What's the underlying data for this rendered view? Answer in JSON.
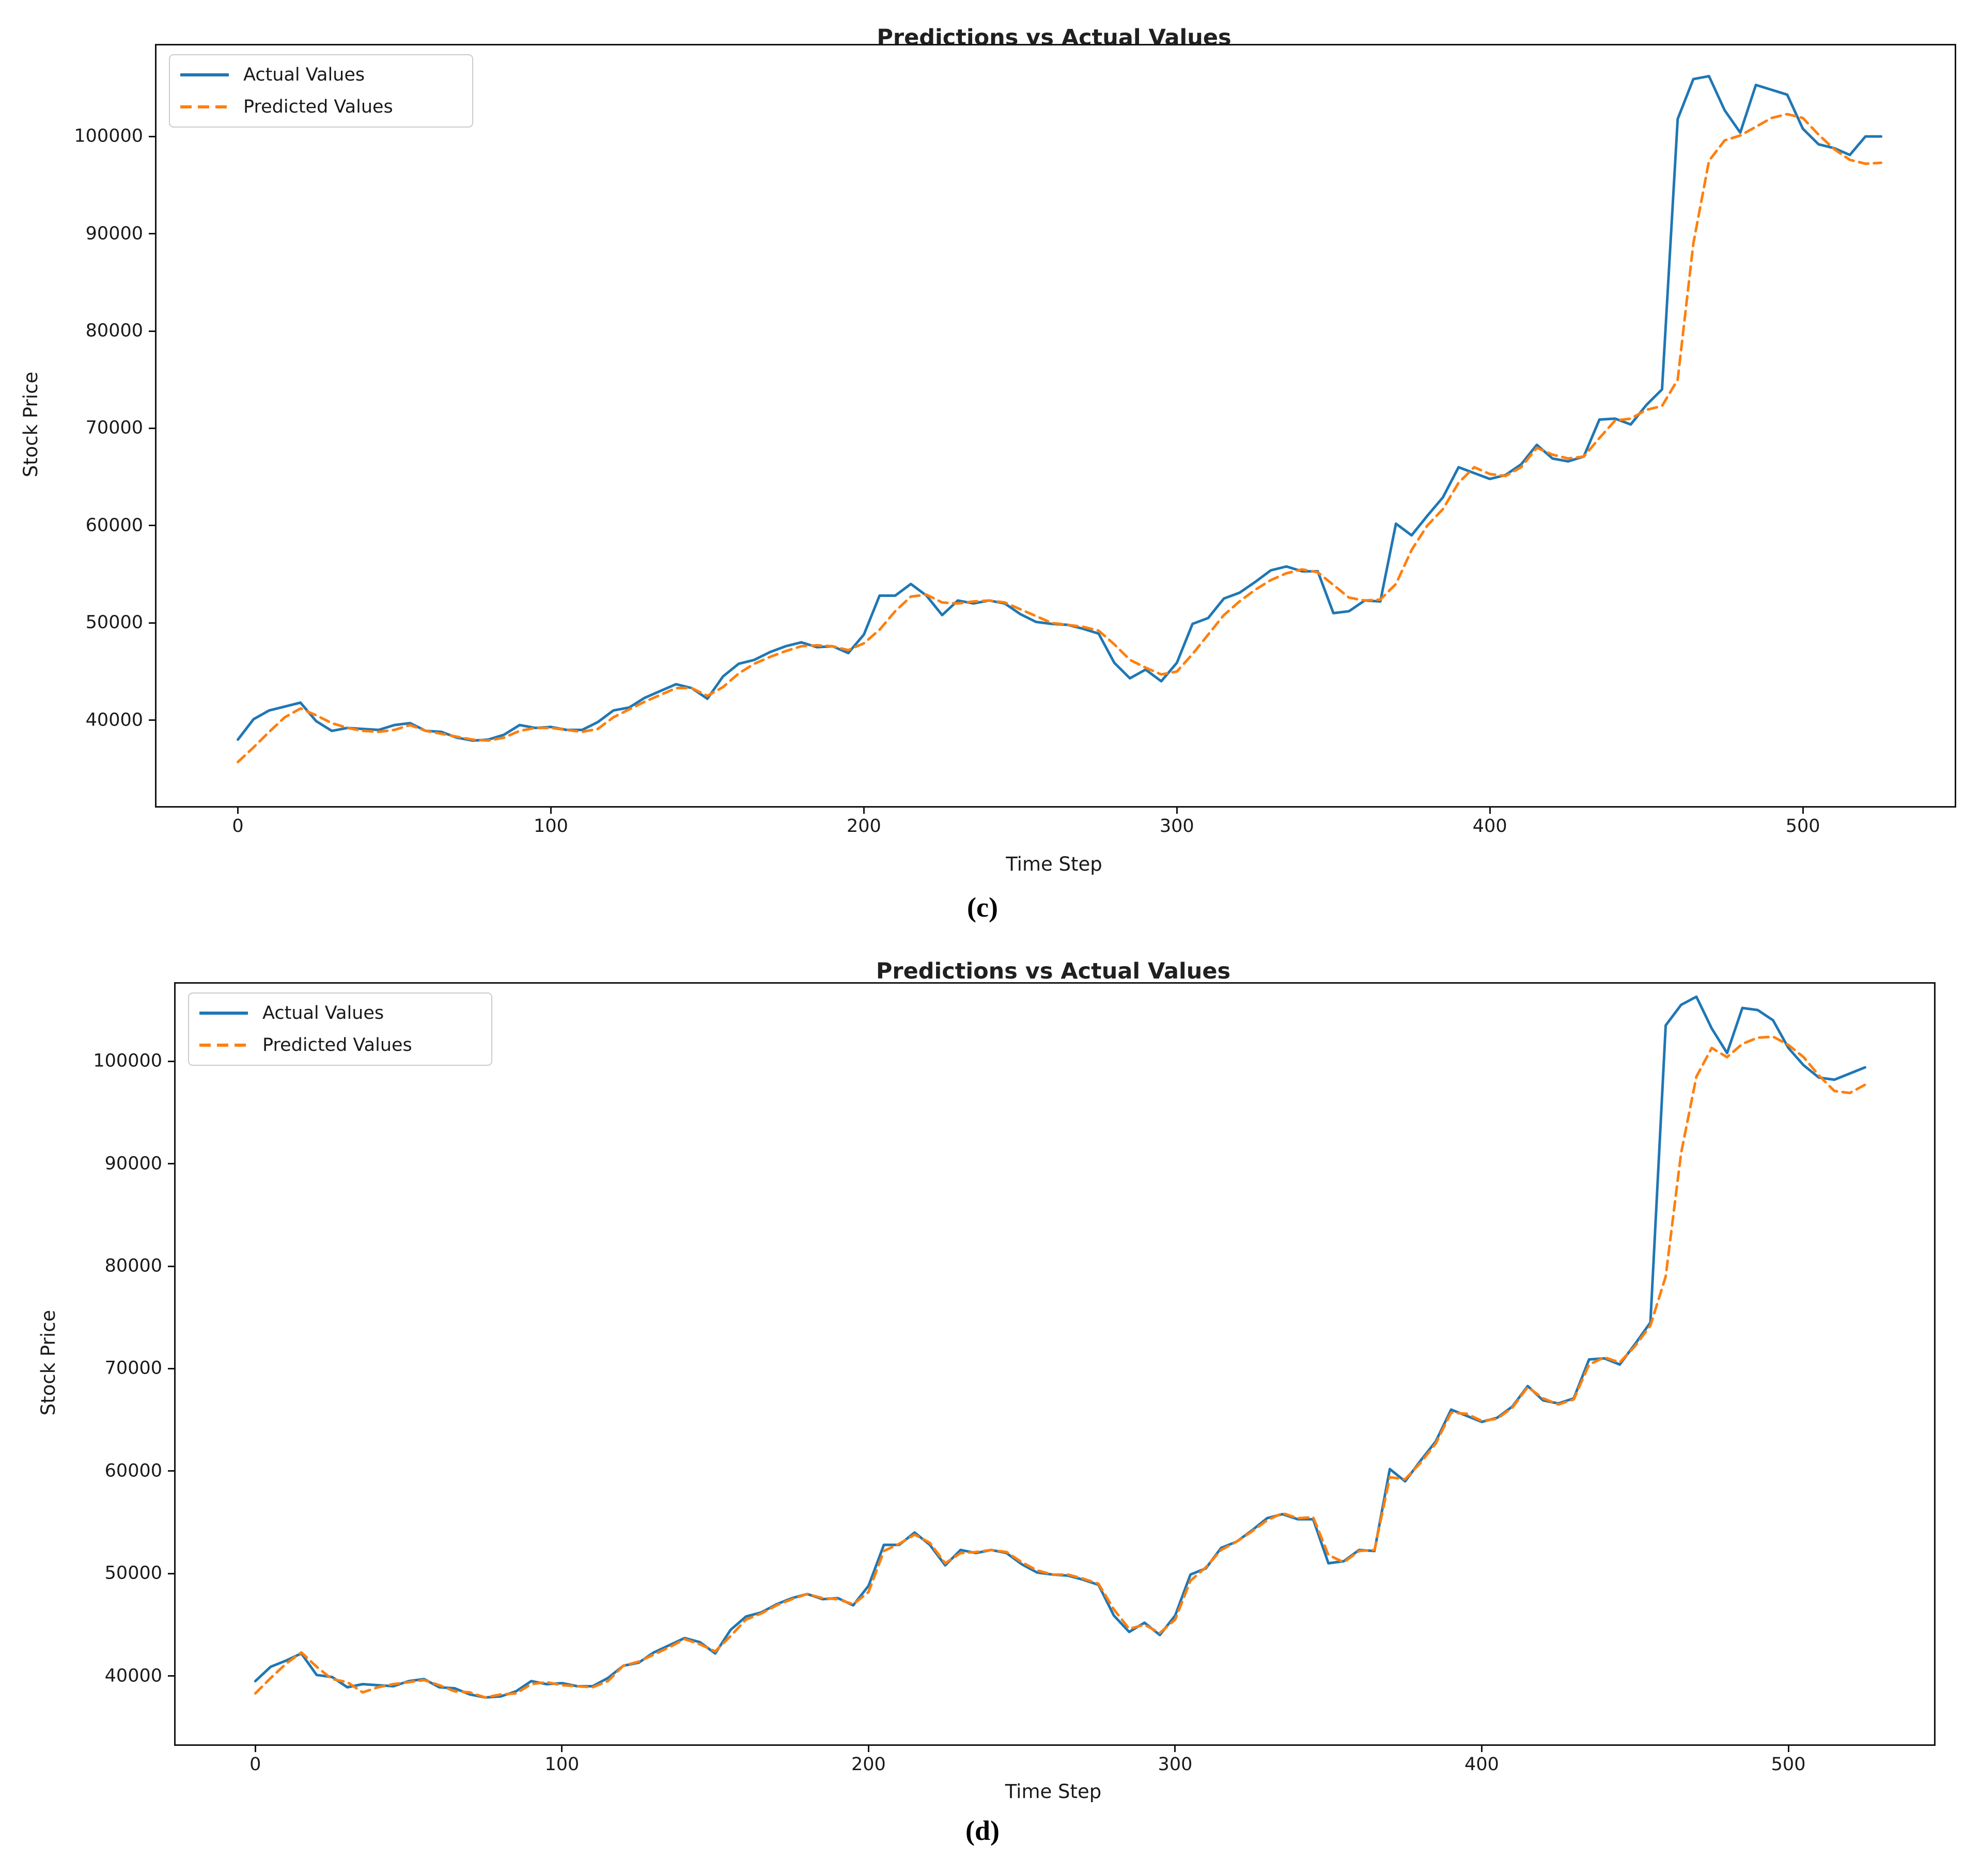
{
  "colors": {
    "actual": "#1f77b4",
    "predicted": "#ff7f0e",
    "text": "#1a1a1a",
    "spine": "#141414",
    "legend_border": "#cbcbcb",
    "background": "#ffffff"
  },
  "chart_data": [
    {
      "id": "c",
      "type": "line",
      "title": "Predictions vs Actual Values",
      "xlabel": "Time Step",
      "ylabel": "Stock Price",
      "caption": "(c)",
      "legend_position": "upper left",
      "grid": false,
      "xlim": [
        -26,
        548.5
      ],
      "ylim": [
        31170,
        109360
      ],
      "x_ticks": [
        0,
        100,
        200,
        300,
        400,
        500
      ],
      "y_ticks": [
        40000,
        50000,
        60000,
        70000,
        80000,
        90000,
        100000
      ],
      "x_start": 0,
      "x_step": 5,
      "series": [
        {
          "name": "Actual Values",
          "style": "solid",
          "color": "#1f77b4",
          "values": [
            38000,
            40100,
            41000,
            41400,
            41800,
            39900,
            38900,
            39200,
            39100,
            39000,
            39500,
            39700,
            38900,
            38800,
            38200,
            37900,
            38000,
            38500,
            39500,
            39200,
            39300,
            39000,
            39000,
            39800,
            41000,
            41300,
            42300,
            43000,
            43700,
            43300,
            42200,
            44500,
            45800,
            46200,
            47000,
            47600,
            48000,
            47500,
            47600,
            46900,
            48800,
            52800,
            52800,
            54000,
            52800,
            50800,
            52300,
            52000,
            52300,
            52000,
            50900,
            50100,
            49900,
            49800,
            49400,
            48900,
            45900,
            44300,
            45200,
            44000,
            45900,
            49900,
            50500,
            52500,
            53100,
            54200,
            55400,
            55800,
            55300,
            55300,
            51000,
            51200,
            52300,
            52200,
            60200,
            59000,
            61000,
            62900,
            66000,
            65400,
            64800,
            65200,
            66300,
            68300,
            66900,
            66600,
            67100,
            70900,
            71000,
            70400,
            72400,
            74000,
            101800,
            105900,
            106200,
            102700,
            100400,
            105300,
            104800,
            104300,
            100800,
            99200,
            98800,
            98100,
            100000,
            100000
          ]
        },
        {
          "name": "Predicted Values",
          "style": "dashed",
          "color": "#ff7f0e",
          "values": [
            35700,
            37200,
            38800,
            40300,
            41200,
            40500,
            39700,
            39200,
            38900,
            38800,
            39000,
            39500,
            38900,
            38600,
            38300,
            38000,
            37900,
            38200,
            38900,
            39200,
            39200,
            39000,
            38800,
            39100,
            40300,
            41100,
            41900,
            42600,
            43300,
            43300,
            42500,
            43400,
            44800,
            45800,
            46500,
            47100,
            47600,
            47700,
            47600,
            47200,
            47900,
            49300,
            51200,
            52700,
            52900,
            52100,
            52000,
            52200,
            52300,
            52100,
            51400,
            50700,
            50000,
            49800,
            49600,
            49200,
            47800,
            46200,
            45400,
            44700,
            45000,
            46800,
            48800,
            50800,
            52200,
            53400,
            54400,
            55100,
            55500,
            55200,
            53900,
            52600,
            52300,
            52400,
            54000,
            57500,
            60000,
            61700,
            64400,
            66000,
            65300,
            65100,
            66000,
            68000,
            67300,
            66900,
            67100,
            69000,
            70800,
            71000,
            71900,
            72300,
            75000,
            89000,
            97500,
            99600,
            100100,
            101000,
            101900,
            102300,
            101900,
            100200,
            98700,
            97600,
            97200,
            97300
          ]
        }
      ]
    },
    {
      "id": "d",
      "type": "line",
      "title": "Predictions vs Actual Values",
      "xlabel": "Time Step",
      "ylabel": "Stock Price",
      "caption": "(d)",
      "legend_position": "upper left",
      "grid": false,
      "xlim": [
        -26,
        547.5
      ],
      "ylim": [
        33330,
        107570
      ],
      "x_ticks": [
        0,
        100,
        200,
        300,
        400,
        500
      ],
      "y_ticks": [
        40000,
        50000,
        60000,
        70000,
        80000,
        90000,
        100000
      ],
      "x_start": 0,
      "x_step": 5,
      "series": [
        {
          "name": "Actual Values",
          "style": "solid",
          "color": "#1f77b4",
          "values": [
            39500,
            40900,
            41500,
            42200,
            40100,
            39900,
            38900,
            39200,
            39100,
            39000,
            39500,
            39700,
            38900,
            38800,
            38200,
            37900,
            38000,
            38500,
            39500,
            39200,
            39300,
            39000,
            39000,
            39800,
            41000,
            41300,
            42300,
            43000,
            43700,
            43300,
            42200,
            44500,
            45800,
            46200,
            47000,
            47600,
            48000,
            47500,
            47600,
            46900,
            48800,
            52800,
            52800,
            54000,
            52800,
            50800,
            52300,
            52000,
            52300,
            52000,
            50900,
            50100,
            49900,
            49800,
            49400,
            48900,
            45900,
            44300,
            45200,
            44000,
            45900,
            49900,
            50500,
            52500,
            53100,
            54200,
            55400,
            55800,
            55300,
            55300,
            51000,
            51200,
            52300,
            52200,
            60200,
            59000,
            61000,
            62900,
            66000,
            65400,
            64800,
            65200,
            66300,
            68300,
            66900,
            66600,
            67100,
            70900,
            71000,
            70400,
            72400,
            74500,
            103500,
            105500,
            106300,
            103200,
            100800,
            105200,
            105000,
            104000,
            101300,
            99600,
            98400,
            98200,
            98800,
            99400
          ]
        },
        {
          "name": "Predicted Values",
          "style": "dashed",
          "color": "#ff7f0e",
          "values": [
            38300,
            39800,
            41200,
            42300,
            40900,
            39700,
            39400,
            38400,
            38900,
            39200,
            39400,
            39600,
            39100,
            38500,
            38400,
            37900,
            38200,
            38300,
            39200,
            39400,
            39100,
            39000,
            38900,
            39500,
            41000,
            41400,
            42100,
            42800,
            43600,
            43100,
            42400,
            43900,
            45500,
            46100,
            46900,
            47500,
            48000,
            47600,
            47500,
            47000,
            48200,
            52200,
            52900,
            53800,
            53000,
            51000,
            52000,
            52100,
            52300,
            52100,
            51100,
            50300,
            49900,
            49900,
            49500,
            49000,
            46500,
            44600,
            45000,
            44200,
            45500,
            49300,
            50600,
            52300,
            53100,
            54100,
            55200,
            55900,
            55400,
            55500,
            51800,
            51100,
            52200,
            52300,
            59400,
            59200,
            60800,
            62700,
            65700,
            65600,
            64900,
            65100,
            66200,
            68200,
            67100,
            66500,
            67000,
            70400,
            71100,
            70600,
            72200,
            74200,
            79000,
            91000,
            98500,
            101300,
            100400,
            101700,
            102300,
            102400,
            101600,
            100400,
            98600,
            97100,
            96900,
            97700
          ]
        }
      ]
    }
  ]
}
